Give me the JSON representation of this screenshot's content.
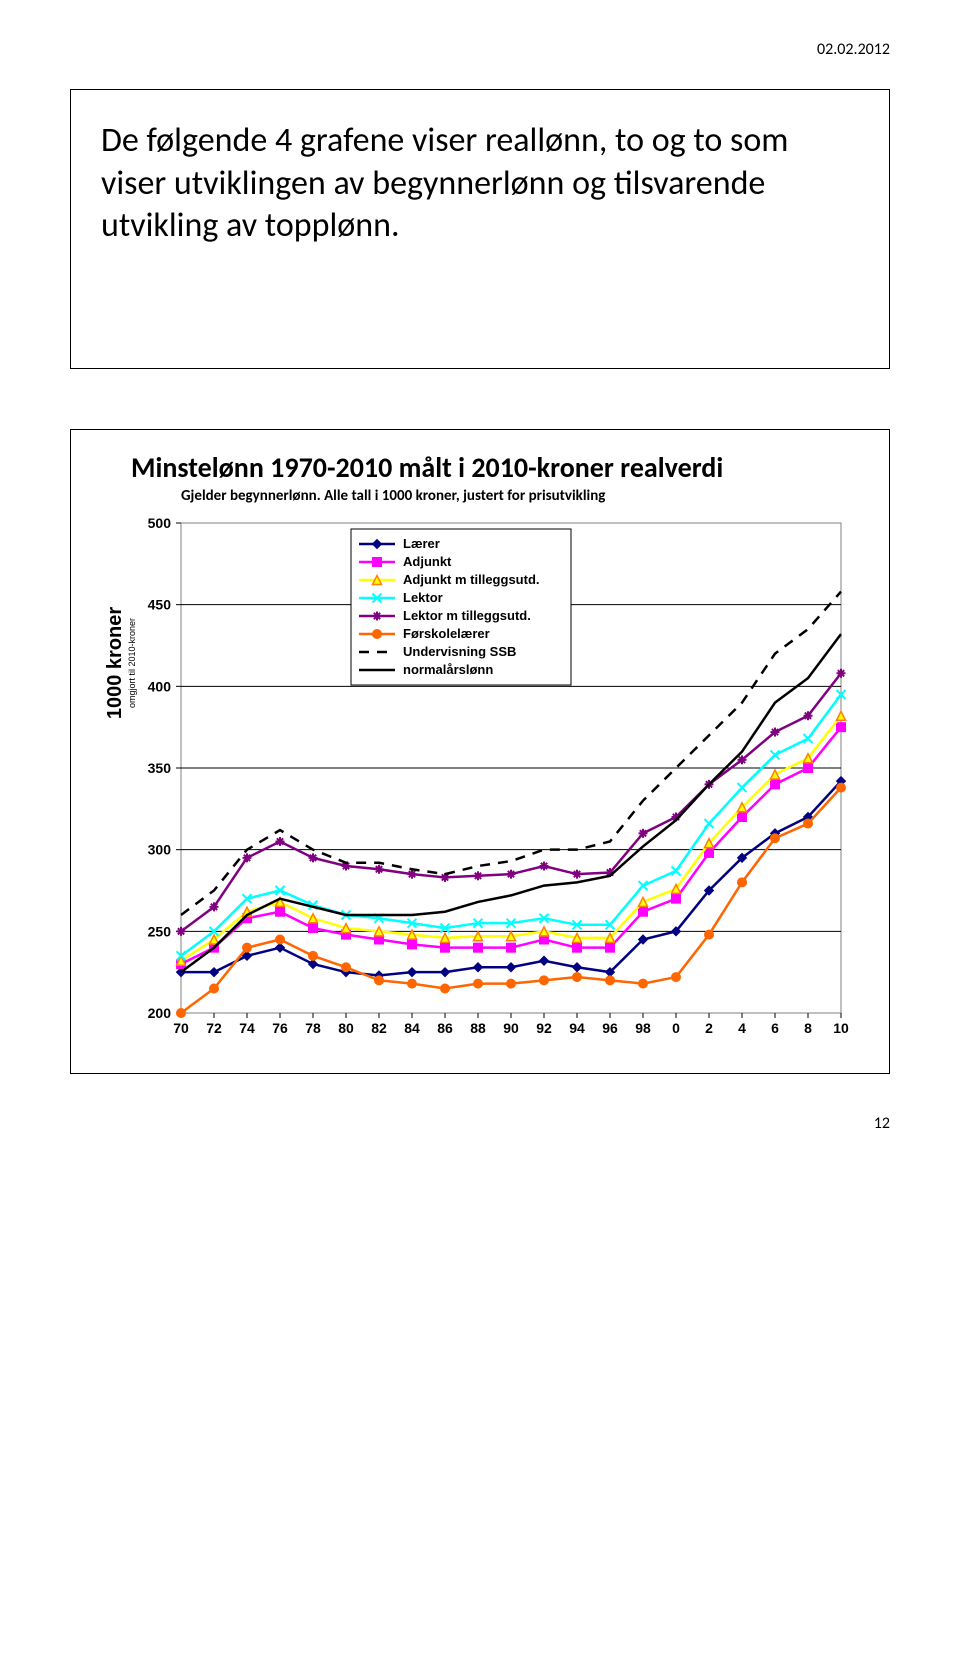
{
  "date_header": "02.02.2012",
  "page_number": "12",
  "text_panel": {
    "body": "De følgende 4 grafene viser reallønn, to og to som viser utviklingen av begynnerlønn og tilsvarende utvikling av topplønn."
  },
  "chart": {
    "type": "line",
    "title": "Minstelønn 1970-2010 målt i 2010-kroner realverdi",
    "subtitle": "Gjelder begynnerlønn. Alle tall i 1000 kroner, justert for prisutvikling",
    "ylabel_main": "1000 kroner",
    "ylabel_sub": "omgjort til 2010-kroner",
    "background_color": "#ffffff",
    "plot_border_color": "#808080",
    "grid_color": "#000000",
    "axis_font_size": 14,
    "ylim": [
      200,
      500
    ],
    "ytick_step": 50,
    "yticks": [
      200,
      250,
      300,
      350,
      400,
      450,
      500
    ],
    "x_categories": [
      "70",
      "72",
      "74",
      "76",
      "78",
      "80",
      "82",
      "84",
      "86",
      "88",
      "90",
      "92",
      "94",
      "96",
      "98",
      "0",
      "2",
      "4",
      "6",
      "8",
      "10"
    ],
    "legend": {
      "position": "top-center",
      "border_color": "#000000",
      "font_size": 13
    },
    "series": [
      {
        "name": "Lærer",
        "color": "#000080",
        "marker": "diamond",
        "marker_fill": "#000080",
        "dash": "none",
        "y": [
          225,
          225,
          235,
          240,
          230,
          225,
          223,
          225,
          225,
          228,
          228,
          232,
          228,
          225,
          245,
          250,
          275,
          295,
          310,
          320,
          342
        ]
      },
      {
        "name": "Adjunkt",
        "color": "#ff00ff",
        "marker": "square",
        "marker_fill": "#ff00ff",
        "dash": "none",
        "y": [
          230,
          240,
          258,
          262,
          252,
          248,
          245,
          242,
          240,
          240,
          240,
          245,
          240,
          240,
          262,
          270,
          298,
          320,
          340,
          350,
          375
        ]
      },
      {
        "name": "Adjunkt m tilleggsutd.",
        "color": "#ffff00",
        "marker": "triangle",
        "marker_fill": "#ffff00",
        "stroke": "#ff8000",
        "dash": "none",
        "y": [
          232,
          245,
          262,
          268,
          258,
          252,
          250,
          248,
          246,
          247,
          247,
          250,
          246,
          246,
          268,
          276,
          304,
          326,
          346,
          356,
          382
        ]
      },
      {
        "name": "Lektor",
        "color": "#00ffff",
        "marker": "x",
        "marker_fill": "#00ffff",
        "dash": "none",
        "y": [
          235,
          250,
          270,
          275,
          266,
          260,
          258,
          255,
          252,
          255,
          255,
          258,
          254,
          254,
          278,
          287,
          316,
          338,
          358,
          368,
          395
        ]
      },
      {
        "name": "Lektor m tilleggsutd.",
        "color": "#800080",
        "marker": "star",
        "marker_fill": "#800080",
        "dash": "none",
        "y": [
          250,
          265,
          295,
          305,
          295,
          290,
          288,
          285,
          283,
          284,
          285,
          290,
          285,
          286,
          310,
          320,
          340,
          355,
          372,
          382,
          408
        ]
      },
      {
        "name": "Førskolelærer",
        "color": "#ff6600",
        "marker": "circle",
        "marker_fill": "#ff6600",
        "dash": "none",
        "y": [
          200,
          215,
          240,
          245,
          235,
          228,
          220,
          218,
          215,
          218,
          218,
          220,
          222,
          220,
          218,
          222,
          248,
          280,
          307,
          316,
          338
        ]
      },
      {
        "name": "Undervisning SSB",
        "color": "#000000",
        "marker": "none",
        "dash": "dash",
        "y": [
          260,
          275,
          300,
          312,
          300,
          292,
          292,
          288,
          285,
          290,
          293,
          300,
          300,
          305,
          330,
          350,
          370,
          390,
          420,
          435,
          458
        ]
      },
      {
        "name": "normalårslønn",
        "color": "#000000",
        "marker": "none",
        "dash": "none",
        "y": [
          225,
          240,
          260,
          270,
          265,
          260,
          260,
          260,
          262,
          268,
          272,
          278,
          280,
          284,
          302,
          318,
          340,
          360,
          390,
          405,
          432
        ]
      }
    ]
  }
}
